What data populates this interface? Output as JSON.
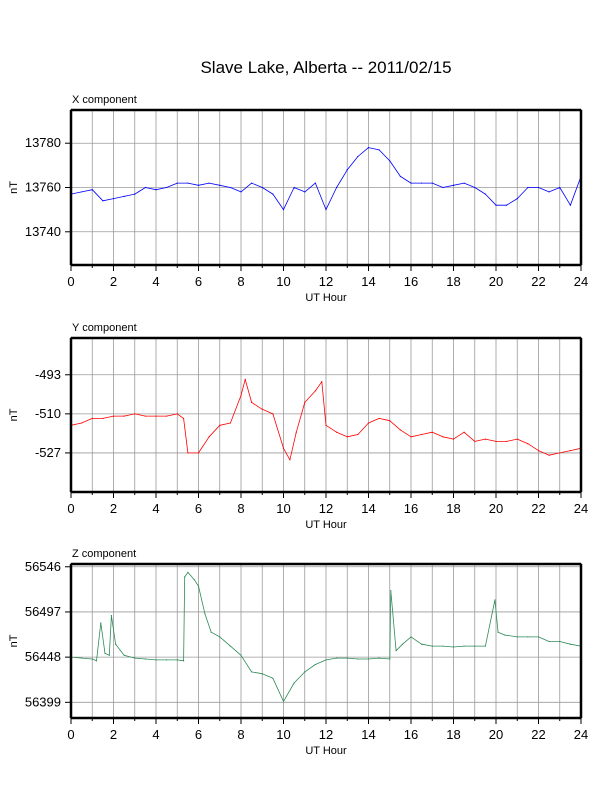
{
  "title": "Slave Lake, Alberta -- 2011/02/15",
  "chart_data": [
    {
      "type": "line",
      "title": "X component",
      "xlabel": "UT Hour",
      "ylabel": "nT",
      "xlim": [
        0,
        24
      ],
      "ylim": [
        13725,
        13795
      ],
      "x_ticks": [
        0,
        2,
        4,
        6,
        8,
        10,
        12,
        14,
        16,
        18,
        20,
        22,
        24
      ],
      "y_ticks": [
        13740,
        13760,
        13780
      ],
      "grid": true,
      "color": "#0000ff",
      "series": [
        {
          "x": [
            0,
            0.5,
            1,
            1.5,
            2,
            2.5,
            3,
            3.5,
            4,
            4.5,
            5,
            5.5,
            6,
            6.5,
            7,
            7.5,
            8,
            8.5,
            9,
            9.5,
            10,
            10.5,
            11,
            11.5,
            12,
            12.5,
            13,
            13.5,
            14,
            14.5,
            15,
            15.5,
            16,
            16.5,
            17,
            17.5,
            18,
            18.5,
            19,
            19.5,
            20,
            20.5,
            21,
            21.5,
            22,
            22.5,
            23,
            23.5,
            24
          ],
          "values": [
            13757,
            13758,
            13759,
            13754,
            13755,
            13756,
            13757,
            13760,
            13759,
            13760,
            13762,
            13762,
            13761,
            13762,
            13761,
            13760,
            13758,
            13762,
            13760,
            13757,
            13750,
            13760,
            13758,
            13762,
            13750,
            13760,
            13768,
            13774,
            13778,
            13777,
            13772,
            13765,
            13762,
            13762,
            13762,
            13760,
            13761,
            13762,
            13760,
            13757,
            13752,
            13752,
            13755,
            13760,
            13760,
            13758,
            13760,
            13752,
            13765
          ]
        }
      ]
    },
    {
      "type": "line",
      "title": "Y component",
      "xlabel": "UT Hour",
      "ylabel": "nT",
      "xlim": [
        0,
        24
      ],
      "ylim": [
        -544,
        -477
      ],
      "x_ticks": [
        0,
        2,
        4,
        6,
        8,
        10,
        12,
        14,
        16,
        18,
        20,
        22,
        24
      ],
      "y_ticks": [
        -493,
        -510,
        -527
      ],
      "grid": true,
      "color": "#ff0000",
      "series": [
        {
          "x": [
            0,
            0.5,
            1,
            1.5,
            2,
            2.5,
            3,
            3.5,
            4,
            4.5,
            5,
            5.3,
            5.5,
            6,
            6.5,
            7,
            7.5,
            8,
            8.2,
            8.5,
            9,
            9.5,
            10,
            10.3,
            10.6,
            11,
            11.5,
            11.8,
            12,
            12.5,
            13,
            13.5,
            14,
            14.5,
            15,
            15.5,
            16,
            16.5,
            17,
            17.5,
            18,
            18.5,
            19,
            19.5,
            20,
            20.5,
            21,
            21.5,
            22,
            22.5,
            23,
            23.5,
            24
          ],
          "values": [
            -515,
            -514,
            -512,
            -512,
            -511,
            -511,
            -510,
            -511,
            -511,
            -511,
            -510,
            -512,
            -527,
            -527,
            -520,
            -515,
            -514,
            -502,
            -495,
            -505,
            -508,
            -510,
            -525,
            -530,
            -518,
            -505,
            -500,
            -496,
            -515,
            -518,
            -520,
            -519,
            -514,
            -512,
            -513,
            -517,
            -520,
            -519,
            -518,
            -520,
            -521,
            -518,
            -522,
            -521,
            -522,
            -522,
            -521,
            -523,
            -526,
            -528,
            -527,
            -526,
            -525
          ]
        }
      ]
    },
    {
      "type": "line",
      "title": "Z component",
      "xlabel": "UT Hour",
      "ylabel": "nT",
      "xlim": [
        0,
        24
      ],
      "ylim": [
        56382,
        56549
      ],
      "x_ticks": [
        0,
        2,
        4,
        6,
        8,
        10,
        12,
        14,
        16,
        18,
        20,
        22,
        24
      ],
      "y_ticks": [
        56399,
        56448,
        56497,
        56546
      ],
      "grid": true,
      "color": "#2e8b57",
      "series": [
        {
          "x": [
            0,
            0.5,
            1,
            1.2,
            1.4,
            1.6,
            1.8,
            1.9,
            2.1,
            2.5,
            3,
            3.5,
            4,
            4.5,
            5,
            5.3,
            5.35,
            5.5,
            5.8,
            6,
            6.3,
            6.6,
            7,
            7.5,
            8,
            8.5,
            9,
            9.5,
            10,
            10.5,
            11,
            11.5,
            12,
            12.5,
            13,
            13.5,
            14,
            14.5,
            15,
            15.05,
            15.3,
            15.6,
            16,
            16.5,
            17,
            17.5,
            18,
            18.5,
            19,
            19.5,
            19.95,
            20.1,
            20.4,
            21,
            21.5,
            22,
            22.5,
            23,
            23.5,
            24
          ],
          "values": [
            56448,
            56447,
            56446,
            56444,
            56485,
            56452,
            56450,
            56493,
            56462,
            56450,
            56447,
            56446,
            56445,
            56445,
            56445,
            56444,
            56535,
            56540,
            56532,
            56525,
            56495,
            56475,
            56470,
            56460,
            56450,
            56432,
            56430,
            56425,
            56400,
            56420,
            56432,
            56440,
            56445,
            56447,
            56447,
            56446,
            56446,
            56447,
            56446,
            56520,
            56455,
            56462,
            56470,
            56462,
            56460,
            56460,
            56459,
            56460,
            56460,
            56460,
            56510,
            56475,
            56472,
            56470,
            56470,
            56470,
            56465,
            56465,
            56462,
            56460
          ]
        }
      ]
    }
  ]
}
